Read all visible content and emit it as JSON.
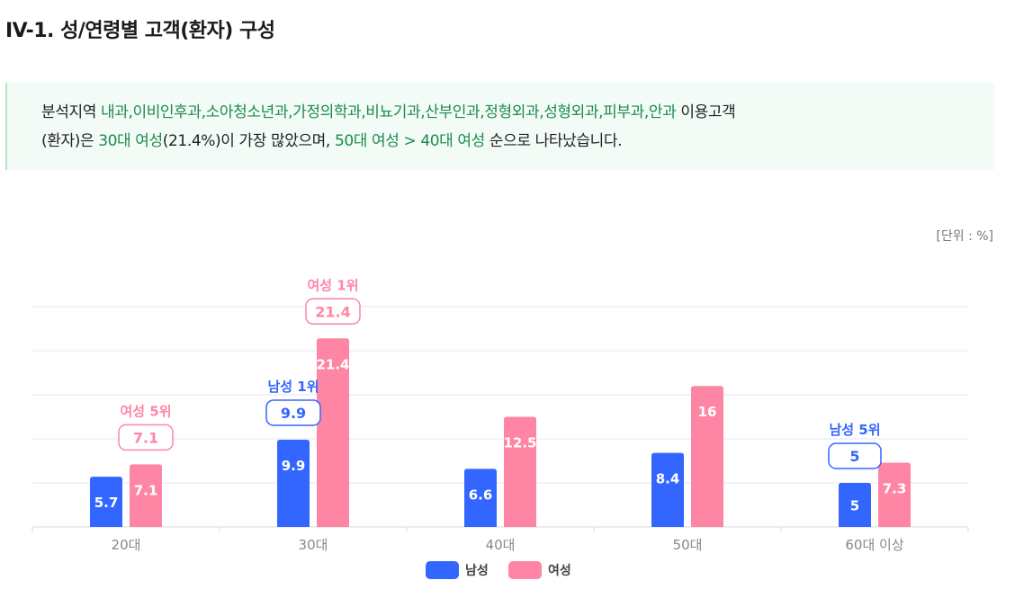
{
  "title": "IV-1. 성/연령별 고객(환자) 구성",
  "summary": {
    "p1": "분석지역 ",
    "departments": "내과,이비인후과,소아청소년과,가정의학과,비뇨기과,산부인과,정형외과,성형외과,피부과,안과",
    "p2": " 이용고객",
    "p3": "(환자)은 ",
    "top1": "30대 여성",
    "p4": "(21.4%)이 가장 많았으며, ",
    "top2": "50대 여성 > 40대 여성",
    "p5": " 순으로 나타났습니다."
  },
  "unit": "[단위 : %]",
  "chart_data": {
    "type": "bar",
    "categories": [
      "20대",
      "30대",
      "40대",
      "50대",
      "60대 이상"
    ],
    "series": [
      {
        "name": "남성",
        "color": "#3366ff",
        "values": [
          5.7,
          9.9,
          6.6,
          8.4,
          5
        ]
      },
      {
        "name": "여성",
        "color": "#ff85a5",
        "values": [
          7.1,
          21.4,
          12.5,
          16,
          7.3
        ]
      }
    ],
    "ylim": [
      0,
      25
    ],
    "grid": true,
    "legend": "bottom-center",
    "annotations": [
      {
        "series": 1,
        "index": 0,
        "label": "여성 5위",
        "value": "7.1"
      },
      {
        "series": 0,
        "index": 1,
        "label": "남성 1위",
        "value": "9.9"
      },
      {
        "series": 1,
        "index": 1,
        "label": "여성 1위",
        "value": "21.4"
      },
      {
        "series": 0,
        "index": 4,
        "label": "남성 5위",
        "value": "5"
      }
    ]
  }
}
